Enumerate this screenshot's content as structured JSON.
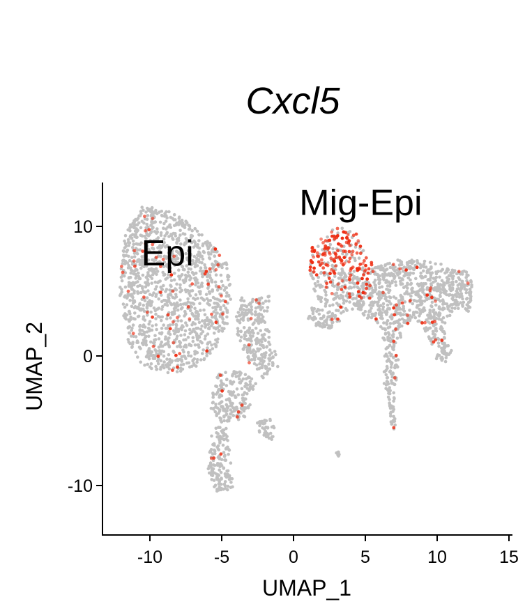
{
  "chart_data": {
    "type": "scatter",
    "title": "Cxcl5",
    "xlabel": "UMAP_1",
    "ylabel": "UMAP_2",
    "xlim": [
      -13.5,
      15
    ],
    "ylim": [
      -13.5,
      13.5
    ],
    "x_ticks": [
      -10,
      -5,
      0,
      5,
      10,
      15
    ],
    "y_ticks": [
      -10,
      0,
      10
    ],
    "grid": false,
    "legend": "none",
    "colors": {
      "low": "#c0c0c0",
      "high": "#ee2b10"
    },
    "annotations": [
      {
        "text": "Epi",
        "x": -10.6,
        "y": 7.0
      },
      {
        "text": "Mig-Epi",
        "x": 0.4,
        "y": 10.9
      }
    ],
    "clusters": [
      {
        "name": "Epi",
        "region": [
          [
            -11.6,
            9.8
          ],
          [
            -10.5,
            11.6
          ],
          [
            -8.6,
            11.2
          ],
          [
            -7.2,
            10.2
          ],
          [
            -5.9,
            8.9
          ],
          [
            -4.6,
            7.1
          ],
          [
            -4.3,
            5.0
          ],
          [
            -4.6,
            2.5
          ],
          [
            -5.4,
            0.6
          ],
          [
            -6.6,
            -0.8
          ],
          [
            -8.6,
            -1.4
          ],
          [
            -10.5,
            -0.8
          ],
          [
            -11.6,
            1.2
          ],
          [
            -12.1,
            4.5
          ],
          [
            -12.0,
            8.0
          ]
        ],
        "points": 1300,
        "high_share": 0.04
      },
      {
        "name": "",
        "region": [
          [
            -3.6,
            4.6
          ],
          [
            -2.5,
            4.4
          ],
          [
            -1.6,
            4.8
          ],
          [
            -1.9,
            2.6
          ],
          [
            -1.4,
            0.8
          ],
          [
            -1.0,
            -0.8
          ],
          [
            -2.2,
            -1.8
          ],
          [
            -3.2,
            -0.4
          ],
          [
            -3.9,
            1.6
          ],
          [
            -4.0,
            3.4
          ]
        ],
        "points": 240,
        "high_share": 0.02
      },
      {
        "name": "",
        "region": [
          [
            -5.3,
            -1.4
          ],
          [
            -3.8,
            -1.0
          ],
          [
            -2.6,
            -2.0
          ],
          [
            -3.2,
            -4.6
          ],
          [
            -4.8,
            -5.4
          ],
          [
            -5.8,
            -4.2
          ],
          [
            -5.6,
            -2.6
          ]
        ],
        "points": 200,
        "high_share": 0.02
      },
      {
        "name": "",
        "region": [
          [
            -5.6,
            -5.5
          ],
          [
            -4.6,
            -5.4
          ],
          [
            -4.4,
            -7.8
          ],
          [
            -4.2,
            -10.2
          ],
          [
            -5.4,
            -10.6
          ],
          [
            -6.0,
            -8.6
          ],
          [
            -5.8,
            -6.6
          ]
        ],
        "points": 150,
        "high_share": 0.03
      },
      {
        "name": "",
        "region": [
          [
            -2.6,
            -5.0
          ],
          [
            -1.4,
            -4.8
          ],
          [
            -1.2,
            -6.6
          ],
          [
            -2.4,
            -6.0
          ]
        ],
        "points": 40,
        "high_share": 0.05
      },
      {
        "name": "Mig-Epi",
        "region": [
          [
            1.3,
            8.6
          ],
          [
            2.4,
            9.6
          ],
          [
            3.4,
            10.0
          ],
          [
            4.3,
            9.6
          ],
          [
            4.8,
            8.4
          ],
          [
            5.4,
            7.4
          ],
          [
            5.8,
            6.2
          ],
          [
            5.4,
            4.8
          ],
          [
            4.4,
            3.4
          ],
          [
            3.0,
            3.2
          ],
          [
            1.6,
            4.2
          ],
          [
            1.1,
            6.4
          ]
        ],
        "points": 360,
        "high_share": 0.3
      },
      {
        "name": "",
        "region": [
          [
            1.2,
            3.8
          ],
          [
            2.6,
            3.4
          ],
          [
            3.4,
            2.8
          ],
          [
            2.8,
            2.0
          ],
          [
            1.4,
            2.4
          ],
          [
            0.9,
            3.0
          ]
        ],
        "points": 70,
        "high_share": 0.04
      },
      {
        "name": "",
        "region": [
          [
            5.6,
            6.8
          ],
          [
            7.2,
            7.4
          ],
          [
            9.0,
            7.4
          ],
          [
            10.6,
            7.0
          ],
          [
            12.2,
            6.6
          ],
          [
            12.6,
            4.6
          ],
          [
            12.2,
            3.4
          ],
          [
            11.2,
            3.6
          ],
          [
            10.4,
            2.2
          ],
          [
            11.0,
            0.4
          ],
          [
            10.8,
            -0.6
          ],
          [
            9.8,
            -0.2
          ],
          [
            9.3,
            1.6
          ],
          [
            8.4,
            2.8
          ],
          [
            7.6,
            2.2
          ],
          [
            7.4,
            0.4
          ],
          [
            7.2,
            -1.4
          ],
          [
            7.0,
            -3.6
          ],
          [
            7.2,
            -5.6
          ],
          [
            6.8,
            -5.8
          ],
          [
            6.6,
            -3.4
          ],
          [
            6.2,
            -1.6
          ],
          [
            6.4,
            0.6
          ],
          [
            6.0,
            2.4
          ],
          [
            5.0,
            3.0
          ],
          [
            4.2,
            4.0
          ],
          [
            4.6,
            5.2
          ],
          [
            5.4,
            6.2
          ]
        ],
        "points": 950,
        "high_share": 0.03
      },
      {
        "name": "",
        "region": [
          [
            2.9,
            -7.2
          ],
          [
            3.3,
            -7.4
          ],
          [
            3.4,
            -7.9
          ],
          [
            3.0,
            -7.7
          ]
        ],
        "points": 6,
        "high_share": 0.0
      }
    ]
  }
}
